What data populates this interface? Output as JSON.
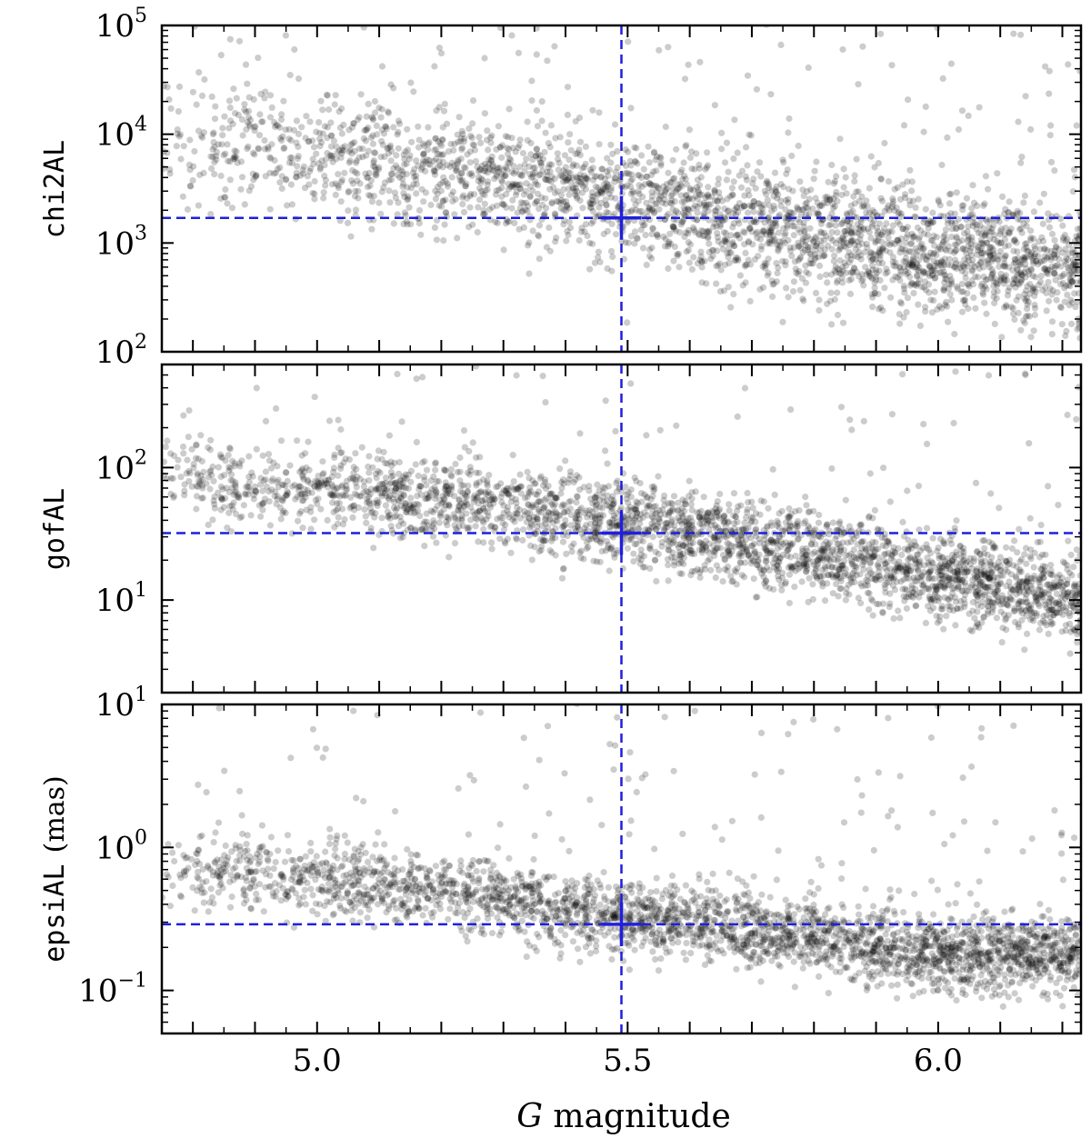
{
  "chart_data": [
    {
      "type": "scatter",
      "ylabel": "chi2AL",
      "yscale": "log",
      "xlim": [
        4.75,
        6.23
      ],
      "ylim": [
        100,
        100000
      ],
      "y_ticks": [
        {
          "base": "10",
          "exp": "2"
        },
        {
          "base": "10",
          "exp": "3"
        },
        {
          "base": "10",
          "exp": "4"
        },
        {
          "base": "10",
          "exp": "5"
        }
      ],
      "reference": {
        "x": 5.49,
        "y": 1700
      },
      "trend": {
        "x": [
          4.75,
          5.0,
          5.25,
          5.5,
          5.75,
          6.0,
          6.23
        ],
        "y": [
          10000,
          6500,
          4500,
          2600,
          1300,
          800,
          600
        ]
      },
      "scatter_log_sigma": 0.28,
      "series": [
        {
          "color": "#000000",
          "opacity": 0.2
        }
      ]
    },
    {
      "type": "scatter",
      "ylabel": "gofAL",
      "yscale": "log",
      "xlim": [
        4.75,
        6.23
      ],
      "ylim": [
        2,
        600
      ],
      "y_ticks": [
        {
          "base": "10",
          "exp": "1"
        },
        {
          "base": "10",
          "exp": "2"
        }
      ],
      "reference": {
        "x": 5.49,
        "y": 32
      },
      "trend": {
        "x": [
          4.75,
          5.0,
          5.25,
          5.5,
          5.75,
          6.0,
          6.23
        ],
        "y": [
          85,
          70,
          55,
          38,
          25,
          15,
          10
        ]
      },
      "scatter_log_sigma": 0.16,
      "series": [
        {
          "color": "#000000",
          "opacity": 0.2
        }
      ]
    },
    {
      "type": "scatter",
      "ylabel": "epsiAL",
      "ylabel_unit": "(mas)",
      "yscale": "log",
      "xlim": [
        4.75,
        6.23
      ],
      "ylim": [
        0.05,
        10
      ],
      "y_ticks": [
        {
          "base": "10",
          "exp": "−1"
        },
        {
          "base": "10",
          "exp": "0"
        },
        {
          "base": "10",
          "exp": "1"
        }
      ],
      "reference": {
        "x": 5.49,
        "y": 0.29
      },
      "trend": {
        "x": [
          4.75,
          5.0,
          5.25,
          5.5,
          5.75,
          6.0,
          6.23
        ],
        "y": [
          0.7,
          0.6,
          0.48,
          0.32,
          0.25,
          0.18,
          0.18
        ]
      },
      "scatter_log_sigma": 0.13,
      "series": [
        {
          "color": "#000000",
          "opacity": 0.2
        }
      ]
    }
  ],
  "x_axis": {
    "label_italic": "G",
    "label_rest": " magnitude",
    "ticks": [
      "5.0",
      "5.5",
      "6.0"
    ],
    "tick_values": [
      5.0,
      5.5,
      6.0
    ]
  },
  "colors": {
    "reference_line": "#1f1fdd",
    "points": "#000000"
  }
}
